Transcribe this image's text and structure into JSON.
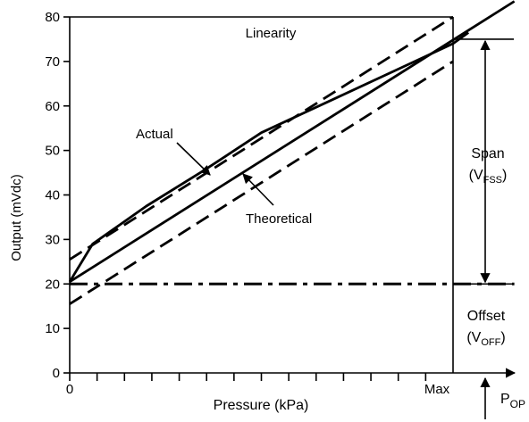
{
  "chart_data": {
    "type": "line",
    "title": "Linearity",
    "xlabel": "Pressure (kPa)",
    "ylabel": "Output (mVdc)",
    "ylim": [
      0,
      80
    ],
    "xlim": [
      0,
      1
    ],
    "y_ticks": [
      "0",
      "10",
      "20",
      "30",
      "40",
      "50",
      "60",
      "70",
      "80"
    ],
    "x_tick_labels": {
      "start": "0",
      "end": "Max"
    },
    "grid": false,
    "series": [
      {
        "name": "Actual",
        "style": "solid",
        "x": [
          0,
          0.06,
          0.2,
          0.35,
          0.5,
          0.7,
          0.9,
          1.0,
          1.04
        ],
        "y": [
          20.5,
          29,
          37.5,
          45.5,
          54,
          62,
          70,
          74,
          76.5
        ]
      },
      {
        "name": "Theoretical",
        "style": "solid",
        "x": [
          0,
          1.16
        ],
        "y": [
          20.5,
          83.5
        ]
      },
      {
        "name": "",
        "style": "dashed",
        "x": [
          0,
          1.0
        ],
        "y": [
          25.5,
          80
        ]
      },
      {
        "name": "",
        "style": "dashed",
        "x": [
          0,
          1.0
        ],
        "y": [
          15.5,
          70
        ]
      },
      {
        "name": "",
        "style": "dash-dot",
        "x": [
          0,
          1.16
        ],
        "y": [
          20,
          20
        ]
      }
    ],
    "annotations": {
      "actual": "Actual",
      "theoretical": "Theoretical",
      "span": "Span",
      "span_sub_pre": "(V",
      "span_sub": "FSS",
      "span_sub_post": ")",
      "offset": "Offset",
      "offset_sub_pre": "(V",
      "offset_sub": "OFF",
      "offset_sub_post": ")",
      "pop": "P",
      "pop_sub": "OP"
    },
    "span_range": [
      20,
      75
    ],
    "reference_lines_y": [
      75,
      20
    ],
    "colors": {
      "ink": "#000000",
      "background": "#ffffff"
    }
  }
}
